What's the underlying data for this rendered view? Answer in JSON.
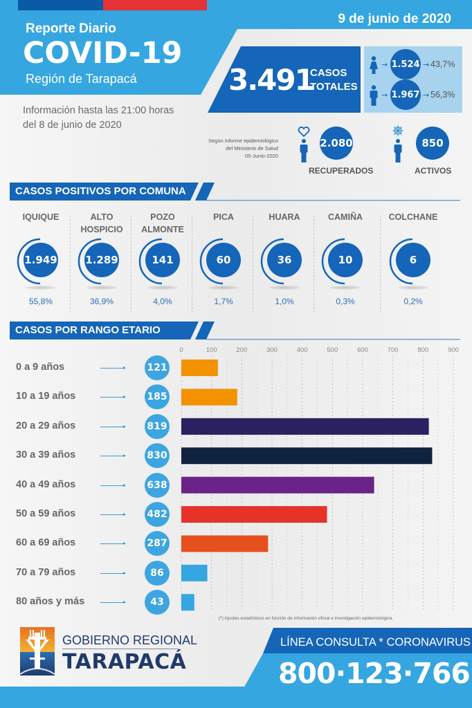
{
  "colors": {
    "header_blue": "#35a6e0",
    "dark_blue": "#1565b8",
    "light_blue_panel": "#a8d3ee",
    "stripe_blue": "#0b5aa8",
    "stripe_red": "#e53236",
    "background": "#f1f1f1"
  },
  "header": {
    "report_label": "Reporte Diario",
    "title": "COVID-19",
    "region": "Región de Tarapacá",
    "date": "9 de junio de 2020",
    "info_line1": "Información hasta las 21:00 horas",
    "info_line2": "del 8 de junio de 2020"
  },
  "totals": {
    "total_cases": "3.491",
    "label_line1": "CASOS",
    "label_line2": "TOTALES",
    "by_sex": [
      {
        "icon": "female-icon",
        "value": "1.524",
        "percent": "43,7%"
      },
      {
        "icon": "male-icon",
        "value": "1.967",
        "percent": "56,3%"
      }
    ]
  },
  "status": {
    "source_note": [
      "Según informe epidemiológico",
      "del Ministerio de Salud",
      "05-Junio-2020"
    ],
    "recovered": {
      "icon": "heart-person-icon",
      "value": "2.080",
      "label": "RECUPERADOS"
    },
    "active": {
      "icon": "virus-person-icon",
      "value": "850",
      "label": "ACTIVOS"
    }
  },
  "comunas": {
    "section_title": "CASOS POSITIVOS POR COMUNA",
    "items": [
      {
        "name_line1": "IQUIQUE",
        "name_line2": "",
        "value": "1.949",
        "percent": "55,8%"
      },
      {
        "name_line1": "ALTO",
        "name_line2": "HOSPICIO",
        "value": "1.289",
        "percent": "36,9%"
      },
      {
        "name_line1": "POZO",
        "name_line2": "ALMONTE",
        "value": "141",
        "percent": "4,0%"
      },
      {
        "name_line1": "PICA",
        "name_line2": "",
        "value": "60",
        "percent": "1,7%"
      },
      {
        "name_line1": "HUARA",
        "name_line2": "",
        "value": "36",
        "percent": "1,0%"
      },
      {
        "name_line1": "CAMIÑA",
        "name_line2": "",
        "value": "10",
        "percent": "0,3%"
      },
      {
        "name_line1": "COLCHANE",
        "name_line2": "",
        "value": "6",
        "percent": "0,2%"
      }
    ]
  },
  "chart_data": {
    "type": "bar",
    "orientation": "horizontal",
    "title": "CASOS POR RANGO ETARIO",
    "categories": [
      "0 a 9 años",
      "10 a 19 años",
      "20 a 29 años",
      "30 a 39 años",
      "40 a 49 años",
      "50 a 59 años",
      "60 a 69 años",
      "70 a 79 años",
      "80 años y más"
    ],
    "values": [
      121,
      185,
      819,
      830,
      638,
      482,
      287,
      86,
      43
    ],
    "value_labels": [
      "121",
      "185",
      "819",
      "830",
      "638",
      "482",
      "287",
      "86",
      "43"
    ],
    "bar_colors": [
      "#f39200",
      "#f39200",
      "#2b2160",
      "#0f233f",
      "#6a2389",
      "#e5332a",
      "#e6501d",
      "#35a6e0",
      "#35a6e0"
    ],
    "xlim": [
      0,
      900
    ],
    "xticks": [
      0,
      100,
      200,
      300,
      400,
      500,
      600,
      700,
      800,
      900
    ],
    "minor_grid_step": 50,
    "grid": true,
    "xlabel": "",
    "ylabel": "",
    "footnote": "(*) Ajustes estadísticos en función de información oficial e investigación epidemiológica."
  },
  "footer": {
    "logo_line1": "GOBIERNO REGIONAL",
    "logo_line2": "TARAPACÁ",
    "hotline_label": "LÍNEA CONSULTA * CORONAVIRUS",
    "hotline_number": "800·123·766"
  }
}
